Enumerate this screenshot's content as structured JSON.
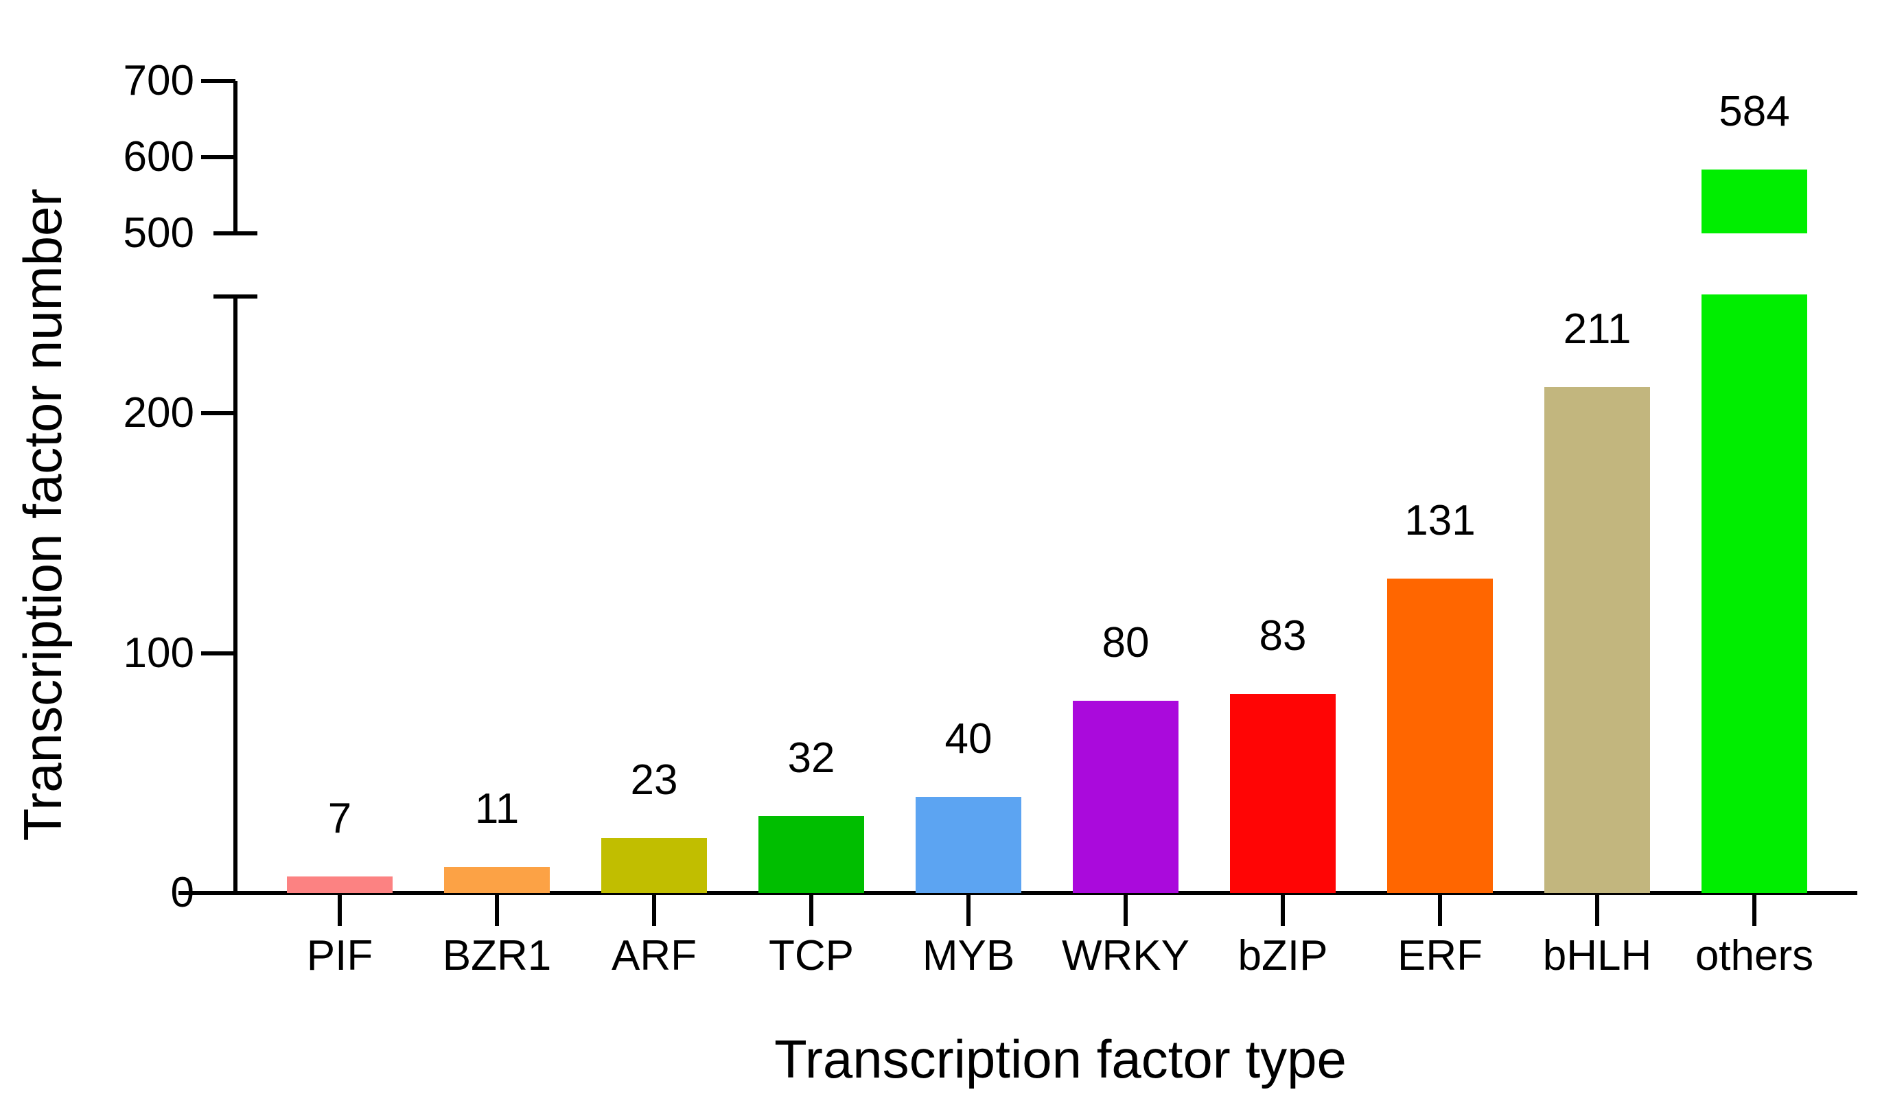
{
  "chart_data": {
    "type": "bar",
    "xlabel": "Transcription factor type",
    "ylabel": "Transcription factor number",
    "categories": [
      "PIF",
      "BZR1",
      "ARF",
      "TCP",
      "MYB",
      "WRKY",
      "bZIP",
      "ERF",
      "bHLH",
      "others"
    ],
    "values": [
      7,
      11,
      23,
      32,
      40,
      80,
      83,
      131,
      211,
      584
    ],
    "value_labels": [
      "7",
      "11",
      "23",
      "32",
      "40",
      "80",
      "83",
      "131",
      "211",
      "584"
    ],
    "bar_colors": [
      "#FC8282",
      "#FCA245",
      "#C1BE00",
      "#00BE00",
      "#5CA4F2",
      "#AA0ADC",
      "#FF0505",
      "#FF6600",
      "#C2B67E",
      "#00EE00"
    ],
    "axis": {
      "broken": true,
      "lower_ticks": [
        0,
        100,
        200
      ],
      "upper_ticks": [
        500,
        600,
        700
      ],
      "lower_range": [
        0,
        249
      ],
      "upper_range": [
        500,
        700
      ],
      "axis_color": "#000000",
      "background": "#FFFFFF",
      "grid": false,
      "legend": "none"
    }
  }
}
